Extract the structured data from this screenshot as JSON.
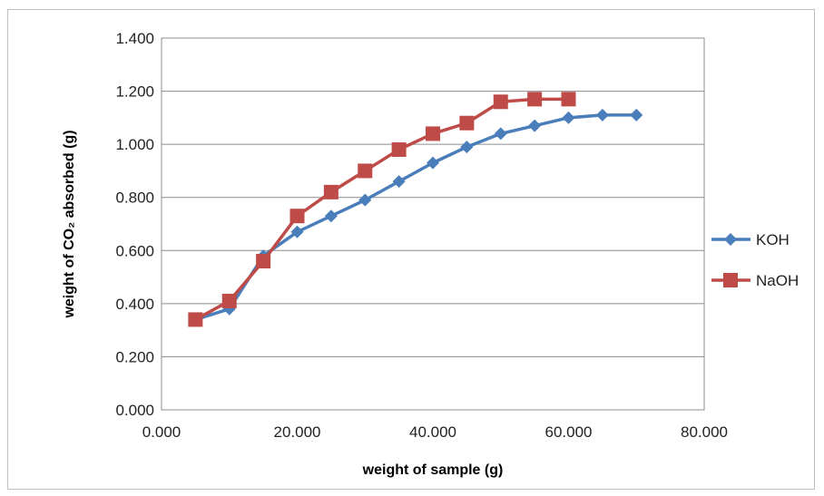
{
  "chart_data": {
    "type": "line",
    "title": "",
    "xlabel": "weight of sample (g)",
    "ylabel": "weight of CO₂ absorbed (g)",
    "xlim": [
      0,
      80
    ],
    "ylim": [
      0,
      1.4
    ],
    "x_ticks": [
      "0.000",
      "20.000",
      "40.000",
      "60.000",
      "80.000"
    ],
    "y_ticks": [
      "0.000",
      "0.200",
      "0.400",
      "0.600",
      "0.800",
      "1.000",
      "1.200",
      "1.400"
    ],
    "grid": "horizontal",
    "legend": "right",
    "series": [
      {
        "name": "KOH",
        "marker": "diamond",
        "color": "#4a7ebb",
        "x": [
          5,
          10,
          15,
          20,
          25,
          30,
          35,
          40,
          45,
          50,
          55,
          60,
          65,
          70
        ],
        "y": [
          0.34,
          0.38,
          0.58,
          0.67,
          0.73,
          0.79,
          0.86,
          0.93,
          0.99,
          1.04,
          1.07,
          1.1,
          1.11,
          1.11
        ]
      },
      {
        "name": "NaOH",
        "marker": "square",
        "color": "#be4b48",
        "x": [
          5,
          10,
          15,
          20,
          25,
          30,
          35,
          40,
          45,
          50,
          55,
          60
        ],
        "y": [
          0.34,
          0.41,
          0.56,
          0.73,
          0.82,
          0.9,
          0.98,
          1.04,
          1.08,
          1.16,
          1.17,
          1.17
        ]
      }
    ]
  }
}
